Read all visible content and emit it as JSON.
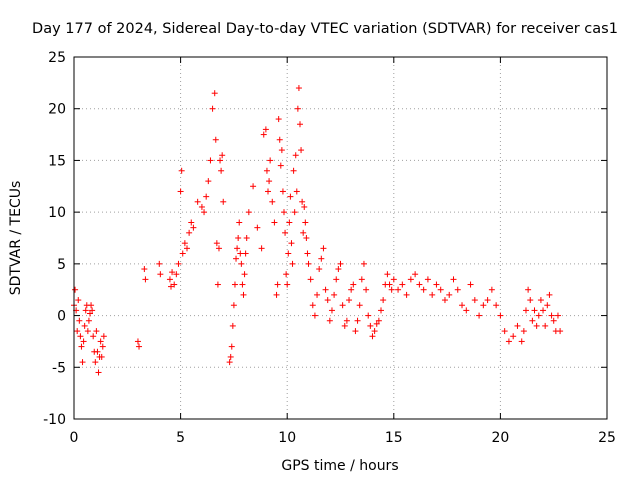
{
  "chart_data": {
    "type": "scatter",
    "title": "Day 177 of 2024, Sidereal Day-to-day VTEC variation (SDTVAR) for receiver cas1",
    "xlabel": "GPS time / hours",
    "ylabel": "SDTVAR / TECUs",
    "xlim": [
      0,
      25
    ],
    "ylim": [
      -10,
      25
    ],
    "xticks": [
      0,
      5,
      10,
      15,
      20,
      25
    ],
    "yticks": [
      -10,
      -5,
      0,
      5,
      10,
      15,
      20,
      25
    ],
    "xtick_labels": [
      "0",
      "5",
      "10",
      "15",
      "20",
      "25"
    ],
    "ytick_labels": [
      "-10",
      "-5",
      "0",
      "5",
      "10",
      "15",
      "20",
      "25"
    ],
    "grid": true,
    "marker": "+",
    "color": "#ff0000",
    "series": [
      {
        "name": "SDTVAR",
        "x": [
          0.0,
          0.05,
          0.1,
          0.15,
          0.2,
          0.25,
          0.3,
          0.35,
          0.4,
          0.45,
          0.5,
          0.55,
          0.6,
          0.65,
          0.7,
          0.75,
          0.8,
          0.85,
          0.9,
          0.95,
          1.0,
          1.05,
          1.1,
          1.15,
          1.2,
          1.25,
          1.3,
          1.35,
          1.4,
          3.0,
          3.05,
          3.3,
          3.35,
          4.0,
          4.05,
          4.5,
          4.55,
          4.6,
          4.7,
          4.8,
          4.9,
          5.0,
          5.05,
          5.1,
          5.2,
          5.3,
          5.4,
          5.5,
          5.6,
          5.8,
          6.0,
          6.1,
          6.2,
          6.3,
          6.4,
          6.5,
          6.6,
          6.65,
          6.7,
          6.75,
          6.8,
          6.85,
          6.9,
          6.95,
          7.0,
          7.3,
          7.35,
          7.4,
          7.45,
          7.5,
          7.55,
          7.6,
          7.65,
          7.7,
          7.75,
          7.8,
          7.85,
          7.9,
          7.95,
          8.0,
          8.05,
          8.1,
          8.2,
          8.4,
          8.6,
          8.8,
          8.9,
          9.0,
          9.05,
          9.1,
          9.15,
          9.2,
          9.3,
          9.4,
          9.5,
          9.55,
          9.6,
          9.65,
          9.7,
          9.75,
          9.8,
          9.85,
          9.9,
          9.95,
          10.0,
          10.05,
          10.1,
          10.15,
          10.2,
          10.25,
          10.3,
          10.35,
          10.4,
          10.45,
          10.5,
          10.55,
          10.6,
          10.65,
          10.7,
          10.75,
          10.8,
          10.85,
          10.9,
          10.95,
          11.0,
          11.1,
          11.2,
          11.3,
          11.4,
          11.5,
          11.6,
          11.7,
          11.8,
          11.9,
          12.0,
          12.1,
          12.2,
          12.3,
          12.4,
          12.5,
          12.6,
          12.7,
          12.8,
          12.9,
          13.0,
          13.1,
          13.2,
          13.3,
          13.4,
          13.5,
          13.6,
          13.7,
          13.8,
          13.9,
          14.0,
          14.1,
          14.2,
          14.3,
          14.4,
          14.5,
          14.6,
          14.7,
          14.8,
          14.9,
          15.0,
          15.2,
          15.4,
          15.6,
          15.8,
          16.0,
          16.2,
          16.4,
          16.6,
          16.8,
          17.0,
          17.2,
          17.4,
          17.6,
          17.8,
          18.0,
          18.2,
          18.4,
          18.6,
          18.8,
          19.0,
          19.2,
          19.4,
          19.6,
          19.8,
          20.0,
          20.2,
          20.4,
          20.6,
          20.8,
          21.0,
          21.1,
          21.2,
          21.3,
          21.4,
          21.5,
          21.6,
          21.7,
          21.8,
          21.9,
          22.0,
          22.1,
          22.2,
          22.3,
          22.4,
          22.5,
          22.6,
          22.7,
          22.8
        ],
        "y": [
          1.0,
          2.5,
          0.5,
          -1.5,
          1.5,
          -0.5,
          -2.0,
          -3.0,
          -4.5,
          -2.5,
          -1.0,
          0.5,
          1.0,
          -1.5,
          -0.5,
          0.2,
          1.0,
          0.5,
          -2.0,
          -3.5,
          -4.5,
          -1.5,
          -3.5,
          -5.5,
          -4.0,
          -2.5,
          -4.0,
          -3.0,
          -2.0,
          -2.5,
          -3.0,
          4.5,
          3.5,
          5.0,
          4.0,
          3.5,
          2.8,
          4.2,
          3.0,
          4.0,
          5.0,
          12.0,
          14.0,
          6.0,
          7.0,
          6.5,
          8.0,
          9.0,
          8.5,
          11.0,
          10.5,
          10.0,
          11.5,
          13.0,
          15.0,
          20.0,
          21.5,
          17.0,
          7.0,
          3.0,
          6.5,
          15.0,
          14.0,
          15.5,
          11.0,
          -4.5,
          -4.0,
          -3.0,
          -1.0,
          1.0,
          3.0,
          5.5,
          6.5,
          7.5,
          9.0,
          6.0,
          5.0,
          3.0,
          2.0,
          4.0,
          6.0,
          7.5,
          10.0,
          12.5,
          8.5,
          6.5,
          17.5,
          18.0,
          14.0,
          12.0,
          13.0,
          15.0,
          11.0,
          9.0,
          2.0,
          3.0,
          19.0,
          17.0,
          14.5,
          16.0,
          12.0,
          10.0,
          8.0,
          4.0,
          3.0,
          6.0,
          9.0,
          11.5,
          7.0,
          5.0,
          14.0,
          10.0,
          15.5,
          12.0,
          20.0,
          22.0,
          18.5,
          16.0,
          11.0,
          8.0,
          10.5,
          9.0,
          7.5,
          6.0,
          5.0,
          3.5,
          1.0,
          0.0,
          2.0,
          4.5,
          5.5,
          6.5,
          2.5,
          1.5,
          -0.5,
          0.5,
          2.0,
          3.5,
          4.5,
          5.0,
          1.0,
          -1.0,
          -0.5,
          1.5,
          2.5,
          3.0,
          -1.5,
          -0.5,
          1.0,
          3.5,
          5.0,
          2.5,
          0.0,
          -1.0,
          -2.0,
          -1.5,
          -0.8,
          -0.5,
          0.5,
          1.5,
          3.0,
          4.0,
          3.0,
          2.5,
          3.5,
          2.5,
          3.0,
          2.0,
          3.5,
          4.0,
          3.0,
          2.5,
          3.5,
          2.0,
          3.0,
          2.5,
          1.5,
          2.0,
          3.5,
          2.5,
          1.0,
          0.5,
          3.0,
          1.5,
          0.0,
          1.0,
          1.5,
          2.5,
          1.0,
          0.0,
          -1.5,
          -2.5,
          -2.0,
          -1.0,
          -2.5,
          -1.5,
          0.5,
          2.5,
          1.5,
          -0.5,
          0.5,
          -1.0,
          0.0,
          1.5,
          0.5,
          -1.0,
          1.0,
          2.0,
          0.0,
          -0.5,
          -1.5,
          0.0,
          -1.5
        ]
      }
    ]
  }
}
